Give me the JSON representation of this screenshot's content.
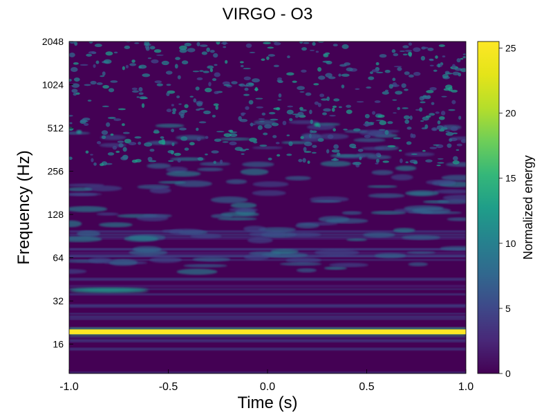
{
  "chart_data": {
    "type": "heatmap",
    "title": "VIRGO - O3",
    "xlabel": "Time (s)",
    "ylabel": "Frequency (Hz)",
    "xlim": [
      -1.0,
      1.0
    ],
    "ylim": [
      10,
      2048
    ],
    "yscale": "log2",
    "x_ticks": [
      -1.0,
      -0.5,
      0.0,
      0.5,
      1.0
    ],
    "x_tick_labels": [
      "-1.0",
      "-0.5",
      "0.0",
      "0.5",
      "1.0"
    ],
    "y_ticks": [
      16,
      32,
      64,
      128,
      256,
      512,
      1024,
      2048
    ],
    "y_tick_labels": [
      "16",
      "32",
      "64",
      "128",
      "256",
      "512",
      "1024",
      "2048"
    ],
    "colormap": "viridis",
    "colorbar": {
      "label": "Normalized energy",
      "range": [
        0,
        25.5
      ],
      "ticks": [
        0,
        5,
        10,
        15,
        20,
        25
      ],
      "tick_labels": [
        "0",
        "5",
        "10",
        "15",
        "20",
        "25"
      ]
    },
    "features": [
      {
        "desc_type": "band",
        "frequency_hz": 19.5,
        "time_range": [
          -1.0,
          1.0
        ],
        "energy": 25
      },
      {
        "desc_type": "band",
        "frequency_hz": 38,
        "time_range": [
          -1.0,
          -0.6
        ],
        "energy": 12
      },
      {
        "desc_type": "spot",
        "frequency_hz": 540,
        "time": 0.25,
        "energy": 14
      },
      {
        "desc_type": "spot",
        "frequency_hz": 480,
        "time": -0.95,
        "energy": 10
      }
    ]
  }
}
